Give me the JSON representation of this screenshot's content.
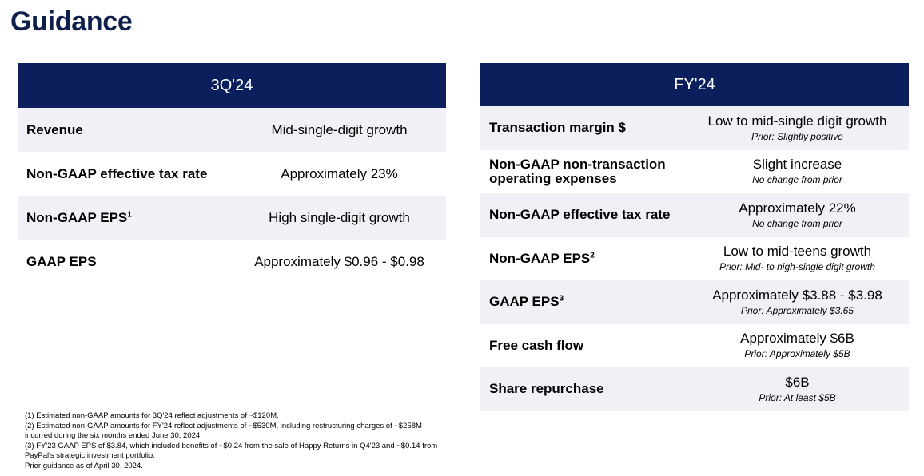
{
  "page": {
    "title": "Guidance"
  },
  "quarter": {
    "header": "3Q'24",
    "rows": [
      {
        "label": "Revenue",
        "sup": "",
        "value": "Mid-single-digit growth"
      },
      {
        "label": "Non-GAAP effective tax rate",
        "sup": "",
        "value": "Approximately 23%"
      },
      {
        "label": "Non-GAAP EPS",
        "sup": "1",
        "value": "High single-digit growth"
      },
      {
        "label": "GAAP EPS",
        "sup": "",
        "value": "Approximately $0.96 - $0.98"
      }
    ]
  },
  "fullyear": {
    "header": "FY'24",
    "rows": [
      {
        "label": "Transaction margin $",
        "sup": "",
        "value": "Low to mid-single digit growth",
        "prior": "Prior: Slightly positive"
      },
      {
        "label": "Non-GAAP non-transaction operating expenses",
        "sup": "",
        "value": "Slight increase",
        "prior": "No change from prior"
      },
      {
        "label": "Non-GAAP effective tax rate",
        "sup": "",
        "value": "Approximately 22%",
        "prior": "No change from prior"
      },
      {
        "label": "Non-GAAP EPS",
        "sup": "2",
        "value": "Low to mid-teens growth",
        "prior": "Prior: Mid- to high-single digit growth"
      },
      {
        "label": "GAAP EPS",
        "sup": "3",
        "value": "Approximately $3.88 - $3.98",
        "prior": "Prior: Approximately $3.65"
      },
      {
        "label": "Free cash flow",
        "sup": "",
        "value": "Approximately $6B",
        "prior": "Prior: Approximately $5B"
      },
      {
        "label": "Share repurchase",
        "sup": "",
        "value": "$6B",
        "prior": "Prior: At least $5B"
      }
    ]
  },
  "footnotes": {
    "f1": "(1) Estimated non-GAAP amounts for 3Q'24 reflect adjustments of ~$120M.",
    "f2": "(2) Estimated non-GAAP amounts for FY'24 reflect adjustments of ~$530M, including restructuring charges of ~$258M incurred during the six months ended June 30, 2024.",
    "f3": "(3) FY'23 GAAP EPS of $3.84, which included benefits of ~$0.24 from the sale of Happy Returns in Q4'23 and ~$0.14 from PayPal's strategic investment portfolio.",
    "f4": "Prior guidance as of April 30, 2024."
  }
}
